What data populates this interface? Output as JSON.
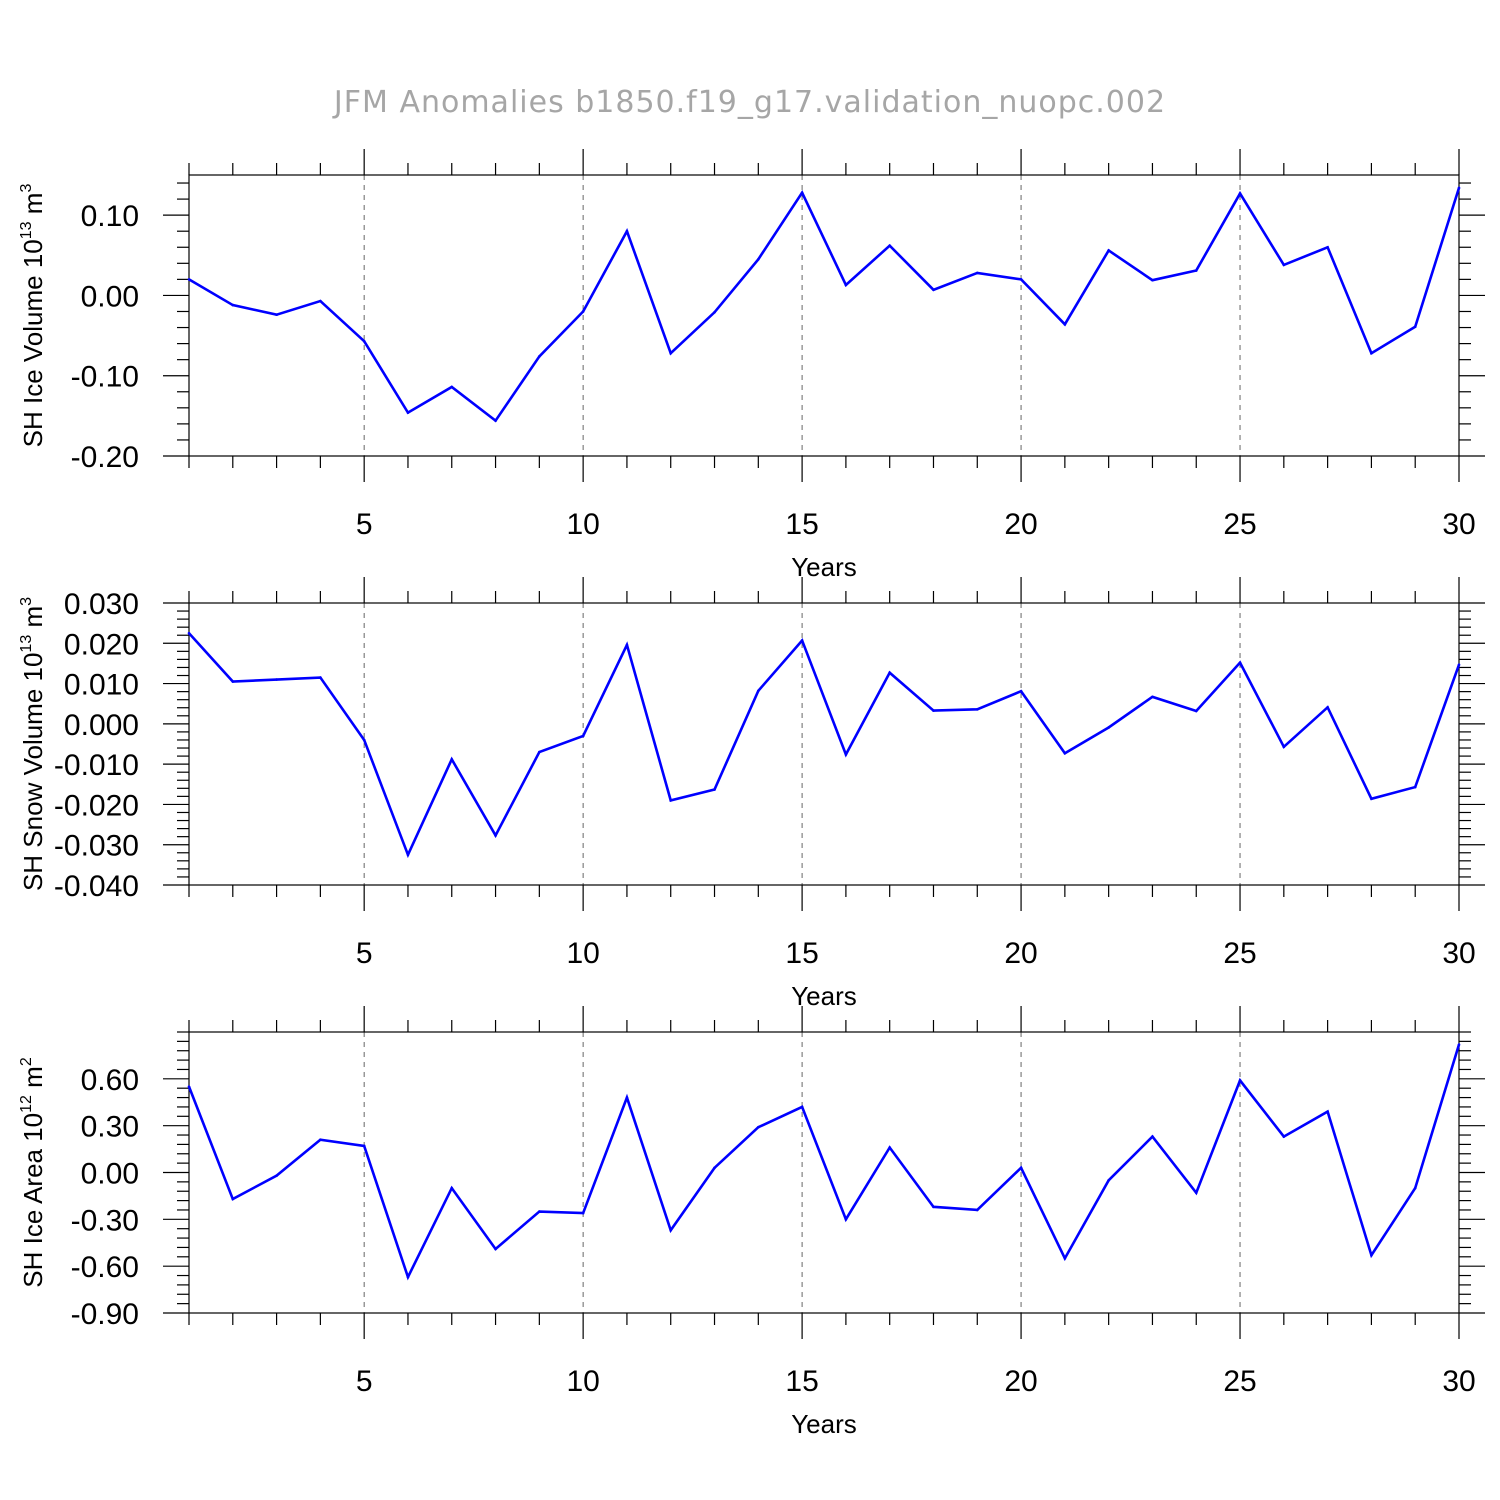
{
  "title": "JFM Anomalies b1850.f19_g17.validation_nuopc.002",
  "colors": {
    "line": "#0000ff",
    "axis": "#000000",
    "grid": "#666666",
    "title": "#a6a6a6"
  },
  "chart_data": [
    {
      "type": "line",
      "title": "",
      "xlabel": "Years",
      "ylabel": {
        "base": "SH Ice Volume 10",
        "exp": "13",
        "unit": " m",
        "unit_exp": "3"
      },
      "xlim": [
        1,
        30
      ],
      "ylim": [
        -0.2,
        0.15
      ],
      "xticks": [
        5,
        10,
        15,
        20,
        25,
        30
      ],
      "xtick_labels": [
        "5",
        "10",
        "15",
        "20",
        "25",
        "30"
      ],
      "yticks": [
        -0.2,
        -0.1,
        0.0,
        0.1
      ],
      "ytick_labels": [
        "-0.20",
        "-0.10",
        "0.00",
        "0.10"
      ],
      "grid": "vertical dashed at major x ticks",
      "series": [
        {
          "name": "SH Ice Volume",
          "x": [
            1,
            2,
            3,
            4,
            5,
            6,
            7,
            8,
            9,
            10,
            11,
            12,
            13,
            14,
            15,
            16,
            17,
            18,
            19,
            20,
            21,
            22,
            23,
            24,
            25,
            26,
            27,
            28,
            29,
            30
          ],
          "values": [
            0.02,
            -0.012,
            -0.024,
            -0.007,
            -0.057,
            -0.146,
            -0.114,
            -0.156,
            -0.076,
            -0.02,
            0.08,
            -0.072,
            -0.021,
            0.045,
            0.128,
            0.013,
            0.062,
            0.007,
            0.028,
            0.02,
            -0.036,
            0.056,
            0.019,
            0.031,
            0.127,
            0.038,
            0.06,
            -0.072,
            -0.039,
            0.134
          ]
        }
      ]
    },
    {
      "type": "line",
      "title": "",
      "xlabel": "Years",
      "ylabel": {
        "base": "SH Snow Volume 10",
        "exp": "13",
        "unit": " m",
        "unit_exp": "3"
      },
      "xlim": [
        1,
        30
      ],
      "ylim": [
        -0.04,
        0.03
      ],
      "xticks": [
        5,
        10,
        15,
        20,
        25,
        30
      ],
      "xtick_labels": [
        "5",
        "10",
        "15",
        "20",
        "25",
        "30"
      ],
      "yticks": [
        -0.04,
        -0.03,
        -0.02,
        -0.01,
        0.0,
        0.01,
        0.02,
        0.03
      ],
      "ytick_labels": [
        "-0.040",
        "-0.030",
        "-0.020",
        "-0.010",
        "0.000",
        "0.010",
        "0.020",
        "0.030"
      ],
      "grid": "vertical dashed at major x ticks",
      "series": [
        {
          "name": "SH Snow Volume",
          "x": [
            1,
            2,
            3,
            4,
            5,
            6,
            7,
            8,
            9,
            10,
            11,
            12,
            13,
            14,
            15,
            16,
            17,
            18,
            19,
            20,
            21,
            22,
            23,
            24,
            25,
            26,
            27,
            28,
            29,
            30
          ],
          "values": [
            0.0225,
            0.0105,
            0.011,
            0.0115,
            -0.004,
            -0.0325,
            -0.0088,
            -0.0277,
            -0.007,
            -0.003,
            0.0196,
            -0.019,
            -0.0163,
            0.0082,
            0.0207,
            -0.0076,
            0.0127,
            0.0033,
            0.0036,
            0.0081,
            -0.0073,
            -0.0009,
            0.0067,
            0.0032,
            0.0152,
            -0.0057,
            0.0041,
            -0.0186,
            -0.0157,
            0.0147
          ]
        }
      ]
    },
    {
      "type": "line",
      "title": "",
      "xlabel": "Years",
      "ylabel": {
        "base": "SH Ice Area 10",
        "exp": "12",
        "unit": " m",
        "unit_exp": "2"
      },
      "xlim": [
        1,
        30
      ],
      "ylim": [
        -0.9,
        0.9
      ],
      "xticks": [
        5,
        10,
        15,
        20,
        25,
        30
      ],
      "xtick_labels": [
        "5",
        "10",
        "15",
        "20",
        "25",
        "30"
      ],
      "yticks": [
        -0.9,
        -0.6,
        -0.3,
        0.0,
        0.3,
        0.6
      ],
      "ytick_labels": [
        "-0.90",
        "-0.60",
        "-0.30",
        "0.00",
        "0.30",
        "0.60"
      ],
      "grid": "vertical dashed at major x ticks",
      "series": [
        {
          "name": "SH Ice Area",
          "x": [
            1,
            2,
            3,
            4,
            5,
            6,
            7,
            8,
            9,
            10,
            11,
            12,
            13,
            14,
            15,
            16,
            17,
            18,
            19,
            20,
            21,
            22,
            23,
            24,
            25,
            26,
            27,
            28,
            29,
            30
          ],
          "values": [
            0.55,
            -0.17,
            -0.02,
            0.21,
            0.17,
            -0.67,
            -0.1,
            -0.49,
            -0.25,
            -0.26,
            0.48,
            -0.37,
            0.03,
            0.29,
            0.42,
            -0.3,
            0.16,
            -0.22,
            -0.24,
            0.03,
            -0.55,
            -0.05,
            0.23,
            -0.13,
            0.59,
            0.23,
            0.39,
            -0.53,
            -0.1,
            0.82
          ]
        }
      ]
    }
  ]
}
